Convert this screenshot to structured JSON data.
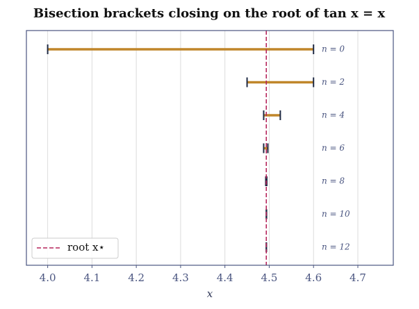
{
  "chart_data": {
    "type": "interval",
    "title": "Bisection brackets closing on the root of tan x = x",
    "xlabel": "x",
    "categories": [
      "n = 0",
      "n = 2",
      "n = 4",
      "n = 6",
      "n = 8",
      "n = 10",
      "n = 12"
    ],
    "low": [
      4.0,
      4.45,
      4.4875,
      4.4875,
      4.4921875,
      4.493359375,
      4.493359375
    ],
    "high": [
      4.6,
      4.6,
      4.525,
      4.496875,
      4.49453125,
      4.4939453125,
      4.49365234375
    ],
    "color": "#c0862a",
    "cap_color": "#1f2a44",
    "root": {
      "value": 4.493409,
      "label": "root x⋆",
      "color": "#b5245a"
    },
    "xlim": [
      3.952,
      4.78
    ],
    "xticks": [
      {
        "value": 4.0,
        "label": "4.0"
      },
      {
        "value": 4.1,
        "label": "4.1"
      },
      {
        "value": 4.2,
        "label": "4.2"
      },
      {
        "value": 4.3,
        "label": "4.3"
      },
      {
        "value": 4.4,
        "label": "4.4"
      },
      {
        "value": 4.5,
        "label": "4.5"
      },
      {
        "value": 4.6,
        "label": "4.6"
      },
      {
        "value": 4.7,
        "label": "4.7"
      }
    ],
    "grid": true,
    "legend": "lower left"
  }
}
